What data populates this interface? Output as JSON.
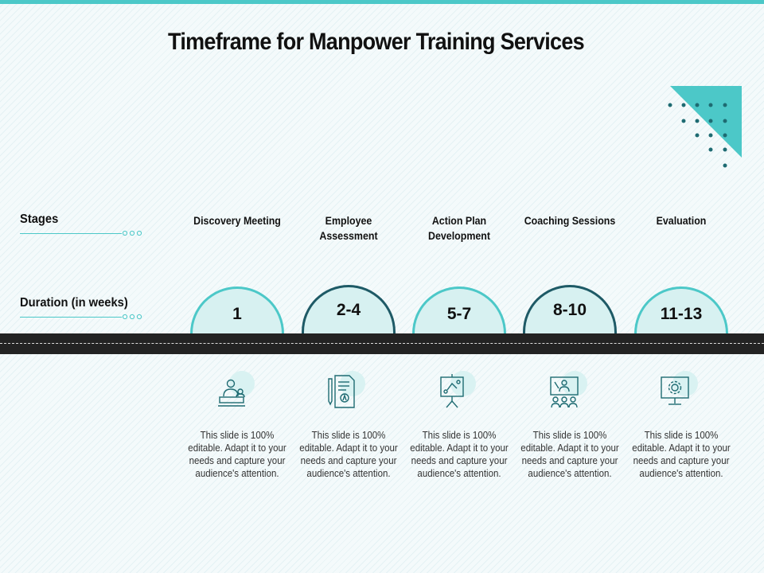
{
  "title": "Timeframe for Manpower Training Services",
  "labels": {
    "stages": "Stages",
    "duration": "Duration (in weeks)"
  },
  "stages": [
    {
      "name": "Discovery Meeting",
      "duration": "1",
      "icon": "meeting-presenter-icon",
      "desc": "This slide is 100% editable. Adapt it to your needs and capture your audience's attention."
    },
    {
      "name": "Employee Assessment",
      "duration": "2-4",
      "icon": "assessment-document-icon",
      "desc": "This slide is 100% editable. Adapt it to your needs and capture your audience's attention."
    },
    {
      "name": "Action Plan Development",
      "duration": "5-7",
      "icon": "strategy-board-icon",
      "desc": "This slide is 100% editable. Adapt it to your needs and capture your audience's attention."
    },
    {
      "name": "Coaching Sessions",
      "duration": "8-10",
      "icon": "coaching-group-icon",
      "desc": "This slide is 100% editable. Adapt it to your needs and capture your audience's attention."
    },
    {
      "name": "Evaluation",
      "duration": "11-13",
      "icon": "monitor-gear-icon",
      "desc": "This slide is 100% editable. Adapt it to your needs and capture your audience's attention."
    }
  ],
  "colors": {
    "accent": "#4cc8c8",
    "dark_accent": "#1e5a66",
    "bubble_fill": "#d7f1f1",
    "road": "#232323"
  }
}
